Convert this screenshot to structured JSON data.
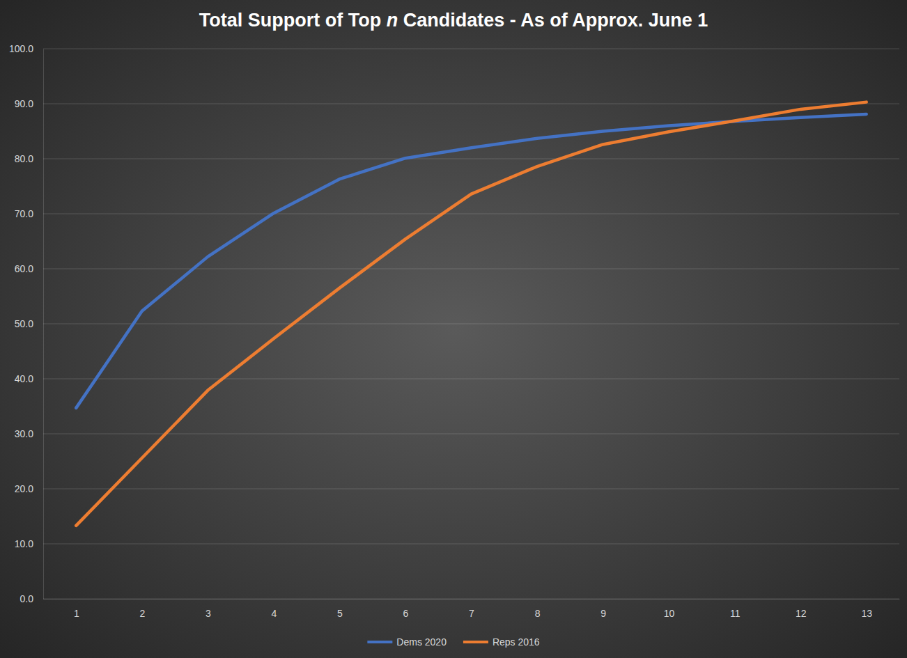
{
  "chart_data": {
    "type": "line",
    "title": "Total Support of Top n Candidates - As of Approx. June 1",
    "categories": [
      "1",
      "2",
      "3",
      "4",
      "5",
      "6",
      "7",
      "8",
      "9",
      "10",
      "11",
      "12",
      "13"
    ],
    "series": [
      {
        "name": "Dems 2020",
        "color": "#4472c4",
        "values": [
          34.7,
          52.3,
          62.2,
          70.1,
          76.3,
          80.1,
          82.0,
          83.7,
          85.0,
          86.0,
          86.8,
          87.5,
          88.1
        ]
      },
      {
        "name": "Reps 2016",
        "color": "#ed7d31",
        "values": [
          13.3,
          25.6,
          37.9,
          47.3,
          56.5,
          65.4,
          73.6,
          78.6,
          82.6,
          84.9,
          86.9,
          89.0,
          90.3
        ]
      }
    ],
    "ylim": [
      0,
      100
    ],
    "yticks": [
      {
        "value": 0,
        "label": "0.0"
      },
      {
        "value": 10,
        "label": "10.0"
      },
      {
        "value": 20,
        "label": "20.0"
      },
      {
        "value": 30,
        "label": "30.0"
      },
      {
        "value": 40,
        "label": "40.0"
      },
      {
        "value": 50,
        "label": "50.0"
      },
      {
        "value": 60,
        "label": "60.0"
      },
      {
        "value": 70,
        "label": "70.0"
      },
      {
        "value": 80,
        "label": "80.0"
      },
      {
        "value": 90,
        "label": "90.0"
      },
      {
        "value": 100,
        "label": "100.0"
      }
    ],
    "grid": true,
    "legend": "bottom"
  }
}
